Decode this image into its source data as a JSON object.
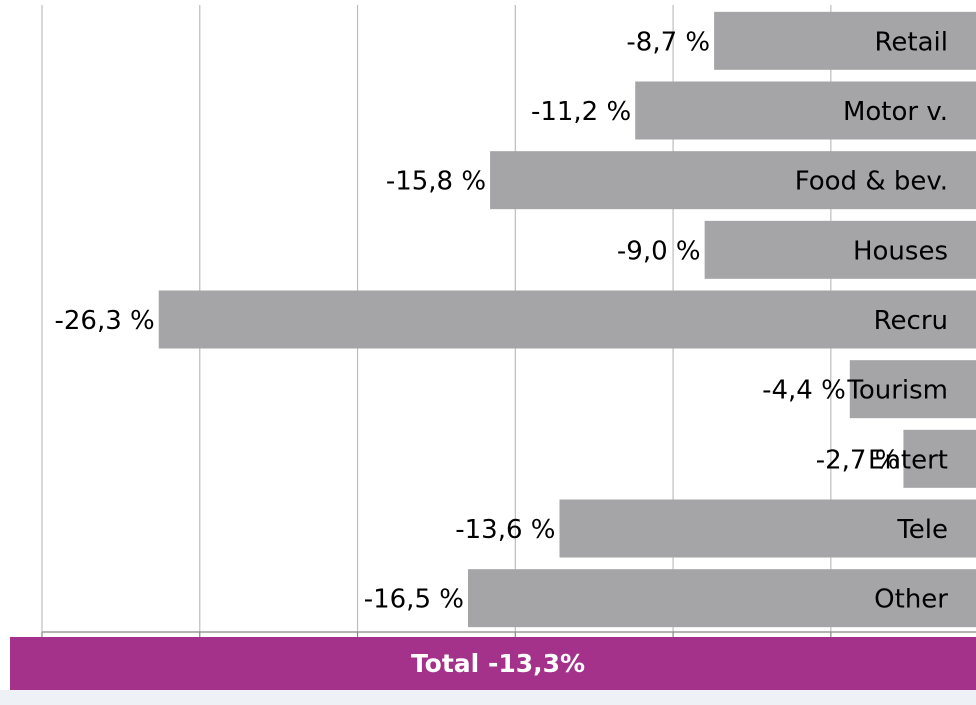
{
  "chart_data": {
    "type": "bar",
    "orientation": "horizontal",
    "categories": [
      "Retail",
      "Motor v.",
      "Food & bev.",
      "Houses",
      "Recru",
      "Tourism",
      "Entert",
      "Tele",
      "Other"
    ],
    "values": [
      -8.7,
      -11.2,
      -15.8,
      -9.0,
      -26.3,
      -4.4,
      -2.7,
      -13.6,
      -16.5
    ],
    "value_labels": [
      "-8,7 %",
      "-11,2 %",
      "-15,8 %",
      "-9,0 %",
      "-26,3 %",
      "-4,4 %",
      "-2,7 %",
      "-13,6 %",
      "-16,5 %"
    ],
    "color": "#a5a5a8",
    "xlim": [
      -30,
      -0.4
    ],
    "xticks": [
      -30,
      -25,
      -20,
      -15,
      -10,
      -5
    ],
    "grid": true,
    "annotation": "Total -13,3%",
    "annotation_color": "#a5328a"
  }
}
